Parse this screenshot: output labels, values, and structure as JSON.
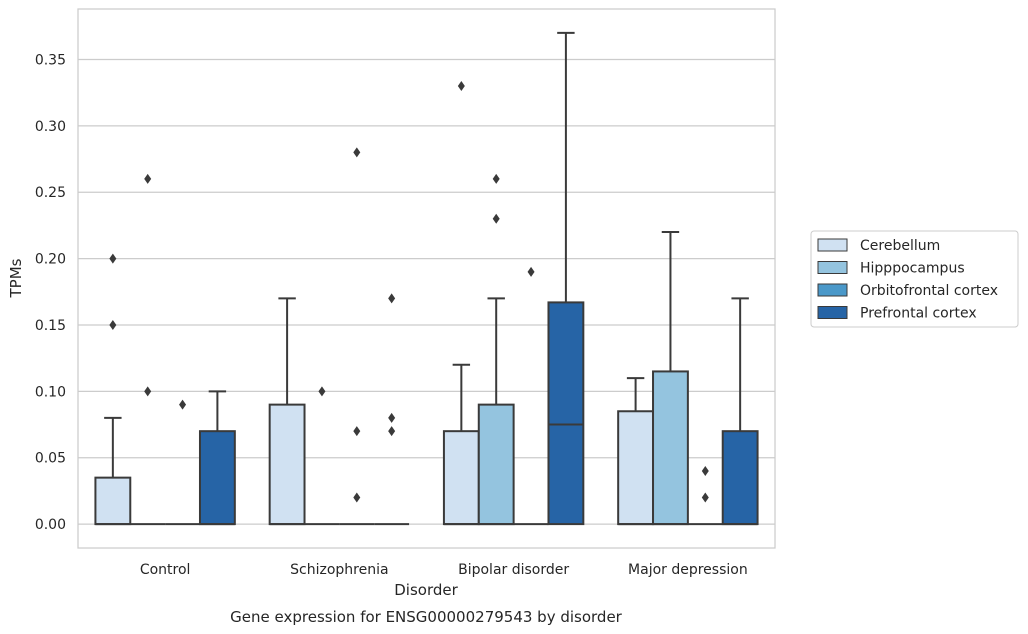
{
  "caption": "Gene expression for ENSG00000279543 by disorder",
  "chart_data": {
    "type": "box",
    "xlabel": "Disorder",
    "ylabel": "TPMs",
    "ylim": [
      -0.018,
      0.388
    ],
    "yticks": [
      0.0,
      0.05,
      0.1,
      0.15,
      0.2,
      0.25,
      0.3,
      0.35
    ],
    "grid": "horizontal",
    "legend_position": "right",
    "categories": [
      "Control",
      "Schizophrenia",
      "Bipolar disorder",
      "Major depression"
    ],
    "series": [
      {
        "name": "Cerebellum",
        "color": "#d0e1f2",
        "boxes": [
          {
            "whislo": 0.0,
            "q1": 0.0,
            "med": 0.0,
            "q3": 0.035,
            "whishi": 0.08,
            "fliers": [
              0.15,
              0.2
            ]
          },
          {
            "whislo": 0.0,
            "q1": 0.0,
            "med": 0.0,
            "q3": 0.09,
            "whishi": 0.17,
            "fliers": []
          },
          {
            "whislo": 0.0,
            "q1": 0.0,
            "med": 0.0,
            "q3": 0.07,
            "whishi": 0.12,
            "fliers": [
              0.33
            ]
          },
          {
            "whislo": 0.0,
            "q1": 0.0,
            "med": 0.0,
            "q3": 0.085,
            "whishi": 0.11,
            "fliers": []
          }
        ]
      },
      {
        "name": "Hipppocampus",
        "color": "#94c4df",
        "boxes": [
          {
            "whislo": 0.0,
            "q1": 0.0,
            "med": 0.0,
            "q3": 0.0,
            "whishi": 0.0,
            "fliers": [
              0.1,
              0.26
            ]
          },
          {
            "whislo": 0.0,
            "q1": 0.0,
            "med": 0.0,
            "q3": 0.0,
            "whishi": 0.0,
            "fliers": [
              0.1
            ]
          },
          {
            "whislo": 0.0,
            "q1": 0.0,
            "med": 0.0,
            "q3": 0.09,
            "whishi": 0.17,
            "fliers": [
              0.23,
              0.26
            ]
          },
          {
            "whislo": 0.0,
            "q1": 0.0,
            "med": 0.0,
            "q3": 0.115,
            "whishi": 0.22,
            "fliers": []
          }
        ]
      },
      {
        "name": "Orbitofrontal cortex",
        "color": "#4a98c9",
        "boxes": [
          {
            "whislo": 0.0,
            "q1": 0.0,
            "med": 0.0,
            "q3": 0.0,
            "whishi": 0.0,
            "fliers": [
              0.09
            ]
          },
          {
            "whislo": 0.0,
            "q1": 0.0,
            "med": 0.0,
            "q3": 0.0,
            "whishi": 0.0,
            "fliers": [
              0.02,
              0.07,
              0.28
            ]
          },
          {
            "whislo": 0.0,
            "q1": 0.0,
            "med": 0.0,
            "q3": 0.0,
            "whishi": 0.0,
            "fliers": [
              0.19
            ]
          },
          {
            "whislo": 0.0,
            "q1": 0.0,
            "med": 0.0,
            "q3": 0.0,
            "whishi": 0.0,
            "fliers": [
              0.02,
              0.04
            ]
          }
        ]
      },
      {
        "name": "Prefrontal cortex",
        "color": "#2664a6",
        "boxes": [
          {
            "whislo": 0.0,
            "q1": 0.0,
            "med": 0.0,
            "q3": 0.07,
            "whishi": 0.1,
            "fliers": []
          },
          {
            "whislo": 0.0,
            "q1": 0.0,
            "med": 0.0,
            "q3": 0.0,
            "whishi": 0.0,
            "fliers": [
              0.07,
              0.08,
              0.17
            ]
          },
          {
            "whislo": 0.0,
            "q1": 0.0,
            "med": 0.075,
            "q3": 0.167,
            "whishi": 0.37,
            "fliers": []
          },
          {
            "whislo": 0.0,
            "q1": 0.0,
            "med": 0.0,
            "q3": 0.07,
            "whishi": 0.17,
            "fliers": []
          }
        ]
      }
    ]
  }
}
